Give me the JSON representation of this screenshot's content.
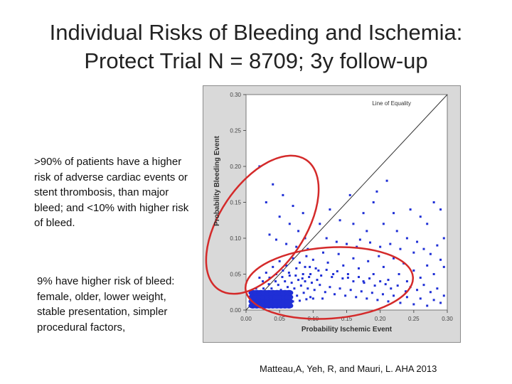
{
  "slide": {
    "title_line1": "Individual Risks of Bleeding and Ischemia:",
    "title_line2": "Protect Trial N = 8709; 3y follow-up",
    "bullet1": ">90% of patients have a higher risk of adverse cardiac events or stent thrombosis, than major bleed; and <10% with higher risk of bleed.",
    "bullet2": "9% have higher risk of bleed: female, older, lower weight, stable presentation, simpler procedural factors,",
    "citation": "Matteau,A, Yeh, R, and Mauri, L. AHA 2013"
  },
  "colors": {
    "points": "#1f2fd6",
    "circle": "#d42a2a",
    "plot_bg": "#ffffff",
    "frame_bg": "#d9d9d9",
    "line_of_equality": "#333333"
  },
  "chart_data": {
    "type": "scatter",
    "xlabel": "Probability Ischemic Event",
    "ylabel": "Probability Bleeding Event",
    "xlim": [
      0,
      0.3
    ],
    "ylim": [
      0,
      0.3
    ],
    "xticks": [
      "0.00",
      "0.05",
      "0.10",
      "0.15",
      "0.20",
      "0.25",
      "0.30"
    ],
    "yticks": [
      "0.00",
      "0.05",
      "0.10",
      "0.15",
      "0.20",
      "0.25",
      "0.30"
    ],
    "grid": false,
    "reference_line": {
      "label": "Line of Equality",
      "from": [
        0,
        0
      ],
      "to": [
        0.3,
        0.3
      ]
    },
    "series": [
      {
        "points": [
          [
            0.02,
            0.2
          ],
          [
            0.04,
            0.175
          ],
          [
            0.055,
            0.16
          ],
          [
            0.07,
            0.145
          ],
          [
            0.085,
            0.135
          ],
          [
            0.03,
            0.15
          ],
          [
            0.05,
            0.13
          ],
          [
            0.065,
            0.12
          ],
          [
            0.078,
            0.11
          ],
          [
            0.088,
            0.1
          ],
          [
            0.035,
            0.105
          ],
          [
            0.045,
            0.098
          ],
          [
            0.06,
            0.092
          ],
          [
            0.075,
            0.088
          ],
          [
            0.092,
            0.085
          ],
          [
            0.11,
            0.12
          ],
          [
            0.125,
            0.14
          ],
          [
            0.14,
            0.125
          ],
          [
            0.155,
            0.16
          ],
          [
            0.16,
            0.12
          ],
          [
            0.175,
            0.135
          ],
          [
            0.18,
            0.11
          ],
          [
            0.19,
            0.15
          ],
          [
            0.195,
            0.165
          ],
          [
            0.205,
            0.12
          ],
          [
            0.21,
            0.18
          ],
          [
            0.22,
            0.135
          ],
          [
            0.225,
            0.11
          ],
          [
            0.24,
            0.1
          ],
          [
            0.245,
            0.14
          ],
          [
            0.255,
            0.095
          ],
          [
            0.26,
            0.13
          ],
          [
            0.27,
            0.12
          ],
          [
            0.28,
            0.15
          ],
          [
            0.29,
            0.14
          ],
          [
            0.295,
            0.1
          ],
          [
            0.12,
            0.1
          ],
          [
            0.135,
            0.095
          ],
          [
            0.15,
            0.092
          ],
          [
            0.165,
            0.088
          ],
          [
            0.17,
            0.098
          ],
          [
            0.185,
            0.094
          ],
          [
            0.2,
            0.088
          ],
          [
            0.215,
            0.092
          ],
          [
            0.23,
            0.085
          ],
          [
            0.25,
            0.08
          ],
          [
            0.265,
            0.085
          ],
          [
            0.275,
            0.078
          ],
          [
            0.285,
            0.09
          ],
          [
            0.29,
            0.07
          ],
          [
            0.295,
            0.06
          ],
          [
            0.28,
            0.05
          ],
          [
            0.27,
            0.062
          ],
          [
            0.26,
            0.045
          ],
          [
            0.25,
            0.055
          ],
          [
            0.24,
            0.04
          ],
          [
            0.235,
            0.065
          ],
          [
            0.228,
            0.05
          ],
          [
            0.22,
            0.072
          ],
          [
            0.212,
            0.042
          ],
          [
            0.205,
            0.06
          ],
          [
            0.198,
            0.075
          ],
          [
            0.19,
            0.05
          ],
          [
            0.182,
            0.068
          ],
          [
            0.175,
            0.04
          ],
          [
            0.168,
            0.058
          ],
          [
            0.16,
            0.072
          ],
          [
            0.152,
            0.045
          ],
          [
            0.145,
            0.062
          ],
          [
            0.138,
            0.078
          ],
          [
            0.13,
            0.05
          ],
          [
            0.122,
            0.066
          ],
          [
            0.115,
            0.08
          ],
          [
            0.108,
            0.055
          ],
          [
            0.1,
            0.07
          ],
          [
            0.095,
            0.06
          ],
          [
            0.09,
            0.075
          ],
          [
            0.085,
            0.05
          ],
          [
            0.08,
            0.066
          ],
          [
            0.075,
            0.058
          ],
          [
            0.07,
            0.072
          ],
          [
            0.065,
            0.048
          ],
          [
            0.06,
            0.062
          ],
          [
            0.055,
            0.055
          ],
          [
            0.05,
            0.068
          ],
          [
            0.045,
            0.05
          ],
          [
            0.04,
            0.06
          ],
          [
            0.035,
            0.045
          ],
          [
            0.03,
            0.052
          ],
          [
            0.025,
            0.04
          ],
          [
            0.02,
            0.045
          ],
          [
            0.015,
            0.03
          ],
          [
            0.01,
            0.025
          ],
          [
            0.008,
            0.012
          ],
          [
            0.012,
            0.008
          ],
          [
            0.018,
            0.015
          ],
          [
            0.022,
            0.02
          ],
          [
            0.028,
            0.025
          ],
          [
            0.032,
            0.018
          ],
          [
            0.038,
            0.03
          ],
          [
            0.042,
            0.022
          ],
          [
            0.048,
            0.035
          ],
          [
            0.052,
            0.028
          ],
          [
            0.058,
            0.04
          ],
          [
            0.062,
            0.032
          ],
          [
            0.068,
            0.038
          ],
          [
            0.072,
            0.03
          ],
          [
            0.078,
            0.042
          ],
          [
            0.082,
            0.034
          ],
          [
            0.088,
            0.04
          ],
          [
            0.092,
            0.03
          ],
          [
            0.098,
            0.038
          ],
          [
            0.102,
            0.028
          ],
          [
            0.11,
            0.035
          ],
          [
            0.118,
            0.025
          ],
          [
            0.125,
            0.032
          ],
          [
            0.132,
            0.022
          ],
          [
            0.14,
            0.03
          ],
          [
            0.148,
            0.02
          ],
          [
            0.156,
            0.028
          ],
          [
            0.164,
            0.018
          ],
          [
            0.172,
            0.026
          ],
          [
            0.18,
            0.016
          ],
          [
            0.188,
            0.024
          ],
          [
            0.196,
            0.014
          ],
          [
            0.204,
            0.022
          ],
          [
            0.212,
            0.012
          ],
          [
            0.22,
            0.02
          ],
          [
            0.23,
            0.01
          ],
          [
            0.24,
            0.018
          ],
          [
            0.25,
            0.008
          ],
          [
            0.26,
            0.016
          ],
          [
            0.27,
            0.006
          ],
          [
            0.28,
            0.014
          ],
          [
            0.29,
            0.01
          ],
          [
            0.295,
            0.02
          ],
          [
            0.285,
            0.03
          ],
          [
            0.275,
            0.025
          ],
          [
            0.265,
            0.035
          ],
          [
            0.255,
            0.028
          ],
          [
            0.245,
            0.032
          ],
          [
            0.238,
            0.026
          ],
          [
            0.226,
            0.034
          ],
          [
            0.216,
            0.03
          ],
          [
            0.208,
            0.036
          ],
          [
            0.2,
            0.04
          ],
          [
            0.192,
            0.034
          ],
          [
            0.184,
            0.044
          ],
          [
            0.176,
            0.038
          ],
          [
            0.168,
            0.046
          ],
          [
            0.16,
            0.04
          ],
          [
            0.152,
            0.05
          ],
          [
            0.144,
            0.044
          ],
          [
            0.136,
            0.054
          ],
          [
            0.128,
            0.046
          ],
          [
            0.12,
            0.056
          ],
          [
            0.112,
            0.048
          ],
          [
            0.104,
            0.058
          ],
          [
            0.096,
            0.05
          ],
          [
            0.088,
            0.06
          ],
          [
            0.013,
            0.018
          ],
          [
            0.016,
            0.022
          ],
          [
            0.024,
            0.012
          ],
          [
            0.026,
            0.03
          ],
          [
            0.034,
            0.036
          ],
          [
            0.036,
            0.014
          ],
          [
            0.044,
            0.04
          ],
          [
            0.046,
            0.016
          ],
          [
            0.054,
            0.046
          ],
          [
            0.056,
            0.02
          ],
          [
            0.064,
            0.052
          ],
          [
            0.066,
            0.024
          ],
          [
            0.074,
            0.048
          ],
          [
            0.076,
            0.02
          ],
          [
            0.084,
            0.044
          ],
          [
            0.086,
            0.024
          ],
          [
            0.094,
            0.046
          ],
          [
            0.096,
            0.018
          ],
          [
            0.106,
            0.042
          ],
          [
            0.114,
            0.016
          ],
          [
            0.01,
            0.005
          ],
          [
            0.02,
            0.006
          ],
          [
            0.03,
            0.007
          ],
          [
            0.04,
            0.008
          ],
          [
            0.05,
            0.009
          ],
          [
            0.06,
            0.01
          ],
          [
            0.07,
            0.012
          ],
          [
            0.08,
            0.013
          ],
          [
            0.09,
            0.015
          ],
          [
            0.1,
            0.016
          ]
        ]
      }
    ]
  }
}
